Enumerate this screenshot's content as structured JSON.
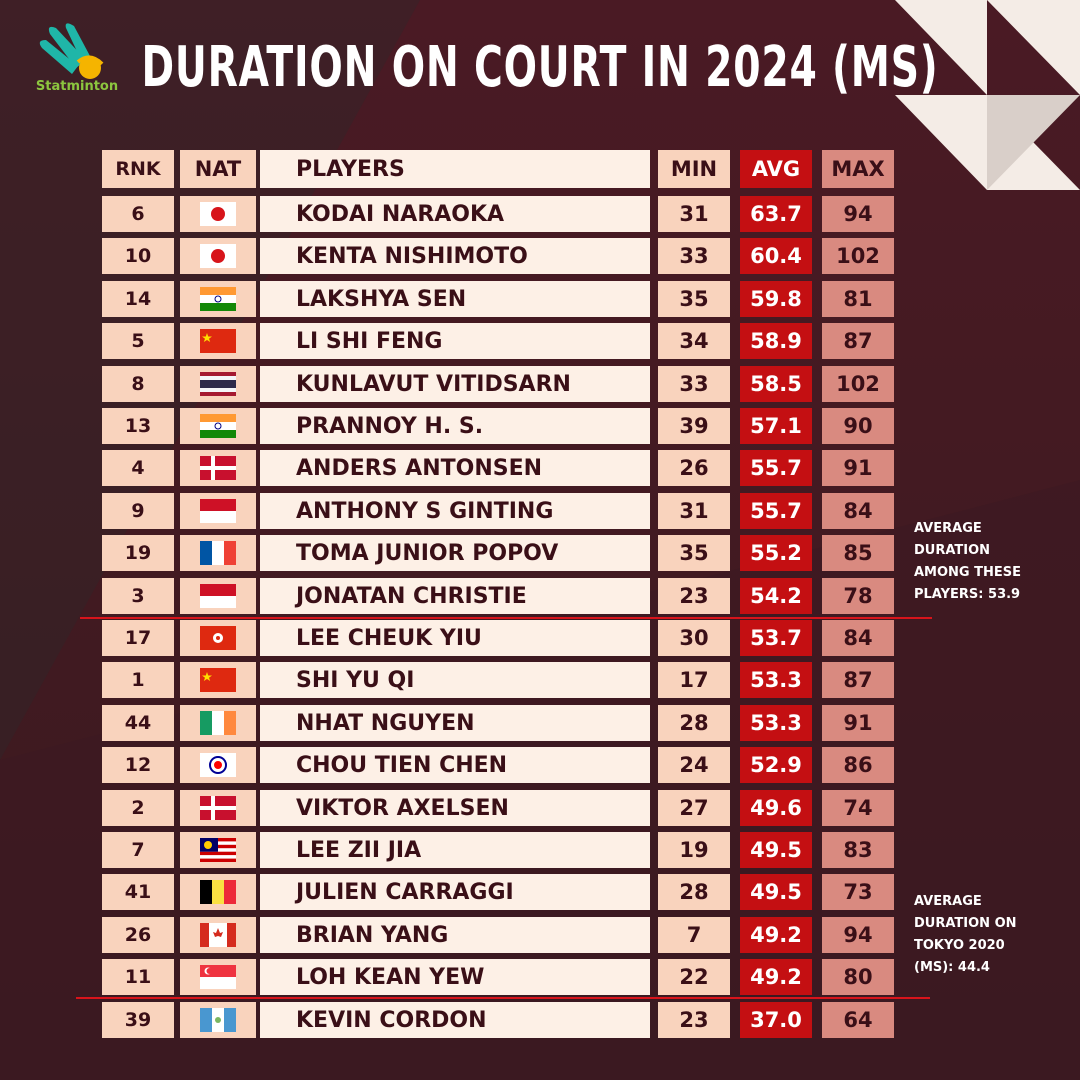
{
  "brand": {
    "name": "Statminton",
    "logo_color": "#8cc63f"
  },
  "title": "DURATION ON COURT IN 2024 (MS)",
  "columns": {
    "rnk": "RNK",
    "nat": "NAT",
    "players": "PLAYERS",
    "min": "MIN",
    "avg": "AVG",
    "max": "MAX"
  },
  "colors": {
    "avg": "#c40f12",
    "max": "#d98a80",
    "line": "#d8141b",
    "background": "#4a1d26"
  },
  "rows": [
    {
      "rnk": "6",
      "nat": "japan",
      "player": "KODAI NARAOKA",
      "min": "31",
      "avg": "63.7",
      "max": "94"
    },
    {
      "rnk": "10",
      "nat": "japan",
      "player": "KENTA NISHIMOTO",
      "min": "33",
      "avg": "60.4",
      "max": "102"
    },
    {
      "rnk": "14",
      "nat": "india",
      "player": "LAKSHYA SEN",
      "min": "35",
      "avg": "59.8",
      "max": "81"
    },
    {
      "rnk": "5",
      "nat": "china",
      "player": "LI SHI FENG",
      "min": "34",
      "avg": "58.9",
      "max": "87"
    },
    {
      "rnk": "8",
      "nat": "thailand",
      "player": "KUNLAVUT VITIDSARN",
      "min": "33",
      "avg": "58.5",
      "max": "102"
    },
    {
      "rnk": "13",
      "nat": "india",
      "player": "PRANNOY H. S.",
      "min": "39",
      "avg": "57.1",
      "max": "90"
    },
    {
      "rnk": "4",
      "nat": "denmark",
      "player": "ANDERS ANTONSEN",
      "min": "26",
      "avg": "55.7",
      "max": "91"
    },
    {
      "rnk": "9",
      "nat": "indonesia",
      "player": "ANTHONY S GINTING",
      "min": "31",
      "avg": "55.7",
      "max": "84"
    },
    {
      "rnk": "19",
      "nat": "france",
      "player": "TOMA JUNIOR POPOV",
      "min": "35",
      "avg": "55.2",
      "max": "85"
    },
    {
      "rnk": "3",
      "nat": "indonesia",
      "player": "JONATAN CHRISTIE",
      "min": "23",
      "avg": "54.2",
      "max": "78"
    },
    {
      "rnk": "17",
      "nat": "hongkong",
      "player": "LEE CHEUK YIU",
      "min": "30",
      "avg": "53.7",
      "max": "84"
    },
    {
      "rnk": "1",
      "nat": "china",
      "player": "SHI YU QI",
      "min": "17",
      "avg": "53.3",
      "max": "87"
    },
    {
      "rnk": "44",
      "nat": "ireland",
      "player": "NHAT NGUYEN",
      "min": "28",
      "avg": "53.3",
      "max": "91"
    },
    {
      "rnk": "12",
      "nat": "taipei",
      "player": "CHOU TIEN CHEN",
      "min": "24",
      "avg": "52.9",
      "max": "86"
    },
    {
      "rnk": "2",
      "nat": "denmark",
      "player": "VIKTOR AXELSEN",
      "min": "27",
      "avg": "49.6",
      "max": "74"
    },
    {
      "rnk": "7",
      "nat": "malaysia",
      "player": "LEE ZII JIA",
      "min": "19",
      "avg": "49.5",
      "max": "83"
    },
    {
      "rnk": "41",
      "nat": "belgium",
      "player": "JULIEN CARRAGGI",
      "min": "28",
      "avg": "49.5",
      "max": "73"
    },
    {
      "rnk": "26",
      "nat": "canada",
      "player": "BRIAN YANG",
      "min": "7",
      "avg": "49.2",
      "max": "94"
    },
    {
      "rnk": "11",
      "nat": "singapore",
      "player": "LOH KEAN YEW",
      "min": "22",
      "avg": "49.2",
      "max": "80"
    },
    {
      "rnk": "39",
      "nat": "guatemala",
      "player": "KEVIN CORDON",
      "min": "23",
      "avg": "37.0",
      "max": "64"
    }
  ],
  "notes": {
    "avg_players": [
      "AVERAGE",
      "DURATION",
      "AMONG THESE",
      "PLAYERS:  53.9"
    ],
    "avg_tokyo": [
      "AVERAGE",
      "DURATION ON",
      "TOKYO 2020",
      "(MS):  44.4"
    ]
  }
}
